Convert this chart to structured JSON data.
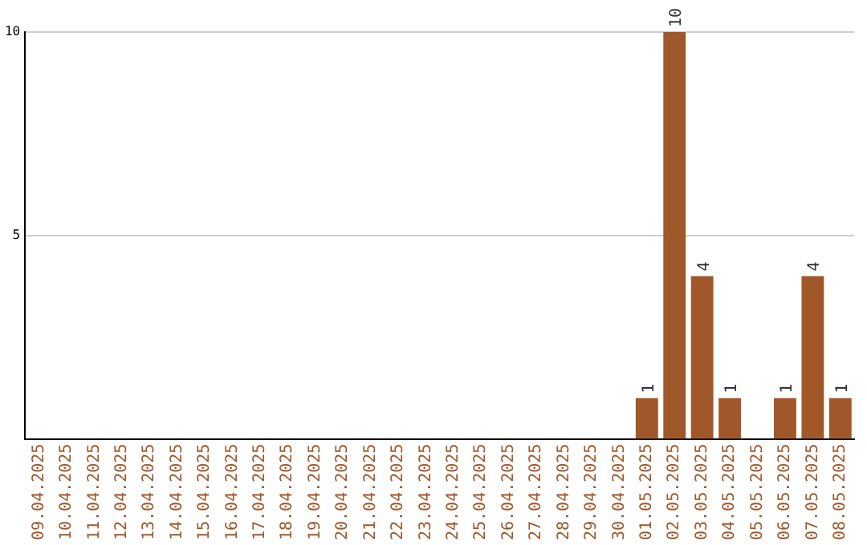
{
  "chart_data": {
    "type": "bar",
    "categories": [
      "09.04.2025",
      "10.04.2025",
      "11.04.2025",
      "12.04.2025",
      "13.04.2025",
      "14.04.2025",
      "15.04.2025",
      "16.04.2025",
      "17.04.2025",
      "18.04.2025",
      "19.04.2025",
      "20.04.2025",
      "21.04.2025",
      "22.04.2025",
      "23.04.2025",
      "24.04.2025",
      "25.04.2025",
      "26.04.2025",
      "27.04.2025",
      "28.04.2025",
      "29.04.2025",
      "30.04.2025",
      "01.05.2025",
      "02.05.2025",
      "03.05.2025",
      "04.05.2025",
      "05.05.2025",
      "06.05.2025",
      "07.05.2025",
      "08.05.2025"
    ],
    "values": [
      0,
      0,
      0,
      0,
      0,
      0,
      0,
      0,
      0,
      0,
      0,
      0,
      0,
      0,
      0,
      0,
      0,
      0,
      0,
      0,
      0,
      0,
      1,
      10,
      4,
      1,
      0,
      1,
      4,
      1
    ],
    "value_labels": [
      null,
      null,
      null,
      null,
      null,
      null,
      null,
      null,
      null,
      null,
      null,
      null,
      null,
      null,
      null,
      null,
      null,
      null,
      null,
      null,
      null,
      null,
      "1",
      "10",
      "4",
      "1",
      null,
      "1",
      "4",
      "1"
    ],
    "color": "#a0582a",
    "ylim": [
      0,
      10
    ],
    "yticks": [
      5,
      10
    ],
    "grid": "y",
    "legend": false
  }
}
